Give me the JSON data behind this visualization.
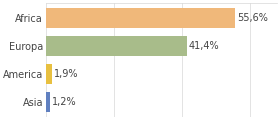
{
  "categories": [
    "Asia",
    "America",
    "Europa",
    "Africa"
  ],
  "values": [
    1.2,
    1.9,
    41.4,
    55.6
  ],
  "labels": [
    "1,2%",
    "1,9%",
    "41,4%",
    "55,6%"
  ],
  "colors": [
    "#6080c0",
    "#e8c040",
    "#a8bc8a",
    "#f0b87a"
  ],
  "xlim": [
    0,
    68
  ],
  "background_color": "#ffffff",
  "bar_height": 0.72,
  "label_fontsize": 7.0,
  "tick_fontsize": 7.0,
  "grid_color": "#d8d8d8"
}
